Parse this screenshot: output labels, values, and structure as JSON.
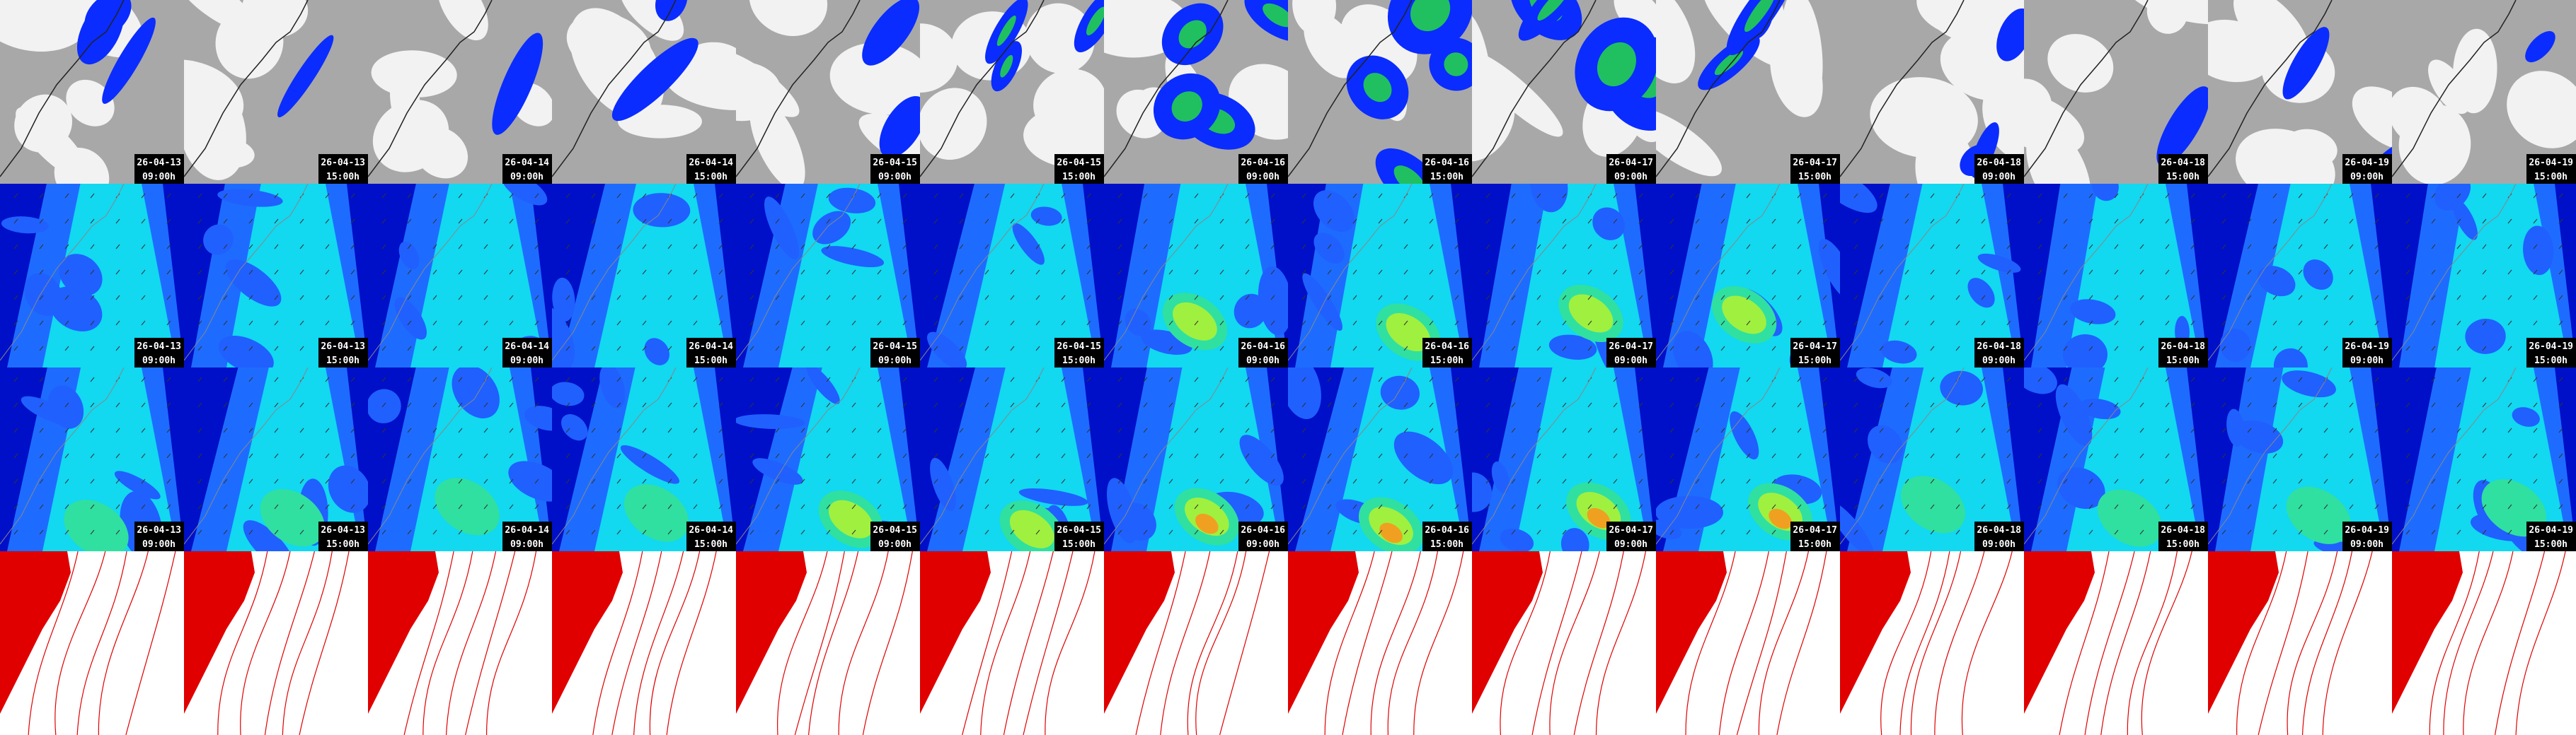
{
  "columns": [
    {
      "date": "26-04-13",
      "time": "09:00h"
    },
    {
      "date": "26-04-13",
      "time": "15:00h"
    },
    {
      "date": "26-04-14",
      "time": "09:00h"
    },
    {
      "date": "26-04-14",
      "time": "15:00h"
    },
    {
      "date": "26-04-15",
      "time": "09:00h"
    },
    {
      "date": "26-04-15",
      "time": "15:00h"
    },
    {
      "date": "26-04-16",
      "time": "09:00h"
    },
    {
      "date": "26-04-16",
      "time": "15:00h"
    },
    {
      "date": "26-04-17",
      "time": "09:00h"
    },
    {
      "date": "26-04-17",
      "time": "15:00h"
    },
    {
      "date": "26-04-18",
      "time": "09:00h"
    },
    {
      "date": "26-04-18",
      "time": "15:00h"
    },
    {
      "date": "26-04-19",
      "time": "09:00h"
    },
    {
      "date": "26-04-19",
      "time": "15:00h"
    }
  ]
}
